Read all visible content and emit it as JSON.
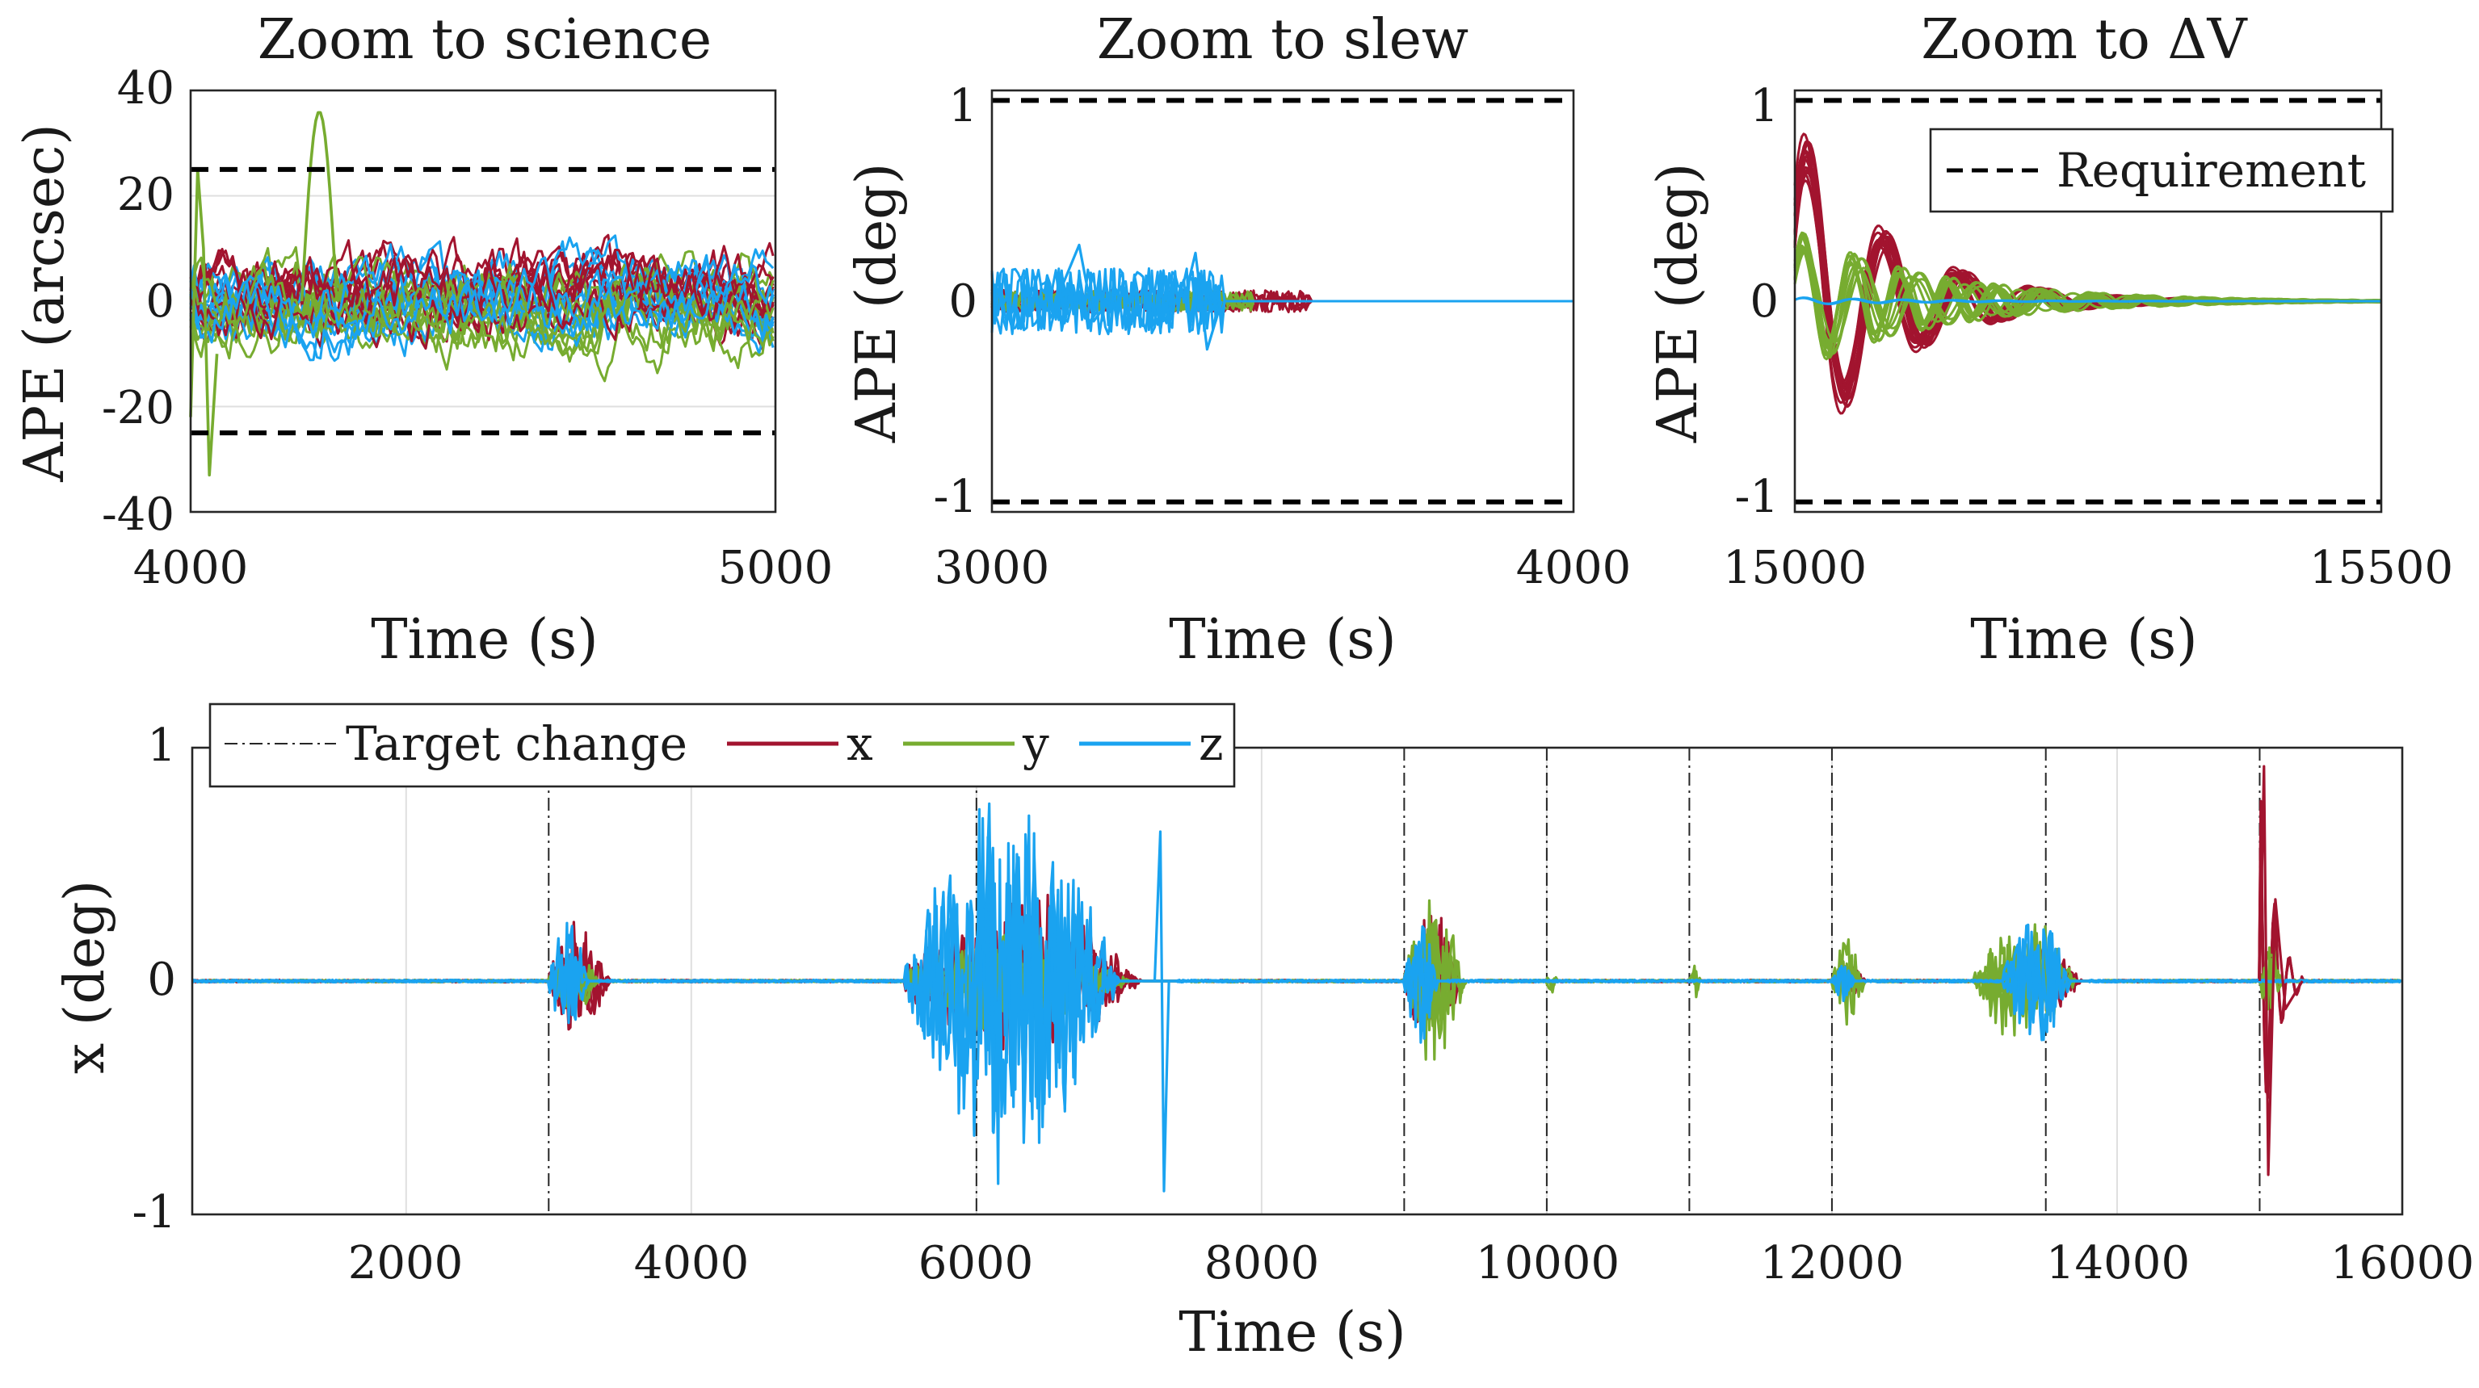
{
  "colors": {
    "x": "#a2142f",
    "y": "#77ac30",
    "z": "#1aa3f0",
    "requirement": "#000000",
    "target_change": "#262626"
  },
  "chart_data": [
    {
      "type": "line",
      "title": "Zoom to science",
      "xlabel": "Time (s)",
      "ylabel": "APE (arcsec)",
      "xlim": [
        4000,
        5000
      ],
      "ylim": [
        -40,
        40
      ],
      "xticks": [
        "4000",
        "5000"
      ],
      "yticks": [
        "40",
        "20",
        "0",
        "-20",
        "-40"
      ],
      "requirement": [
        25,
        -25
      ],
      "series": [
        {
          "name": "x",
          "band": [
            -12,
            15
          ]
        },
        {
          "name": "y",
          "band": [
            -15,
            12
          ],
          "spikes": [
            [
              4220,
              36
            ],
            [
              4020,
              25
            ],
            [
              4030,
              -33
            ]
          ]
        },
        {
          "name": "z",
          "band": [
            -14,
            14
          ]
        }
      ]
    },
    {
      "type": "line",
      "title": "Zoom to slew",
      "xlabel": "Time (s)",
      "ylabel": "APE (deg)",
      "xlim": [
        3000,
        4000
      ],
      "ylim": [
        -1.05,
        1.05
      ],
      "xticks": [
        "3000",
        "4000"
      ],
      "yticks": [
        "1",
        "0",
        "-1"
      ],
      "requirement": [
        1,
        -1
      ],
      "series": [
        {
          "name": "x",
          "peak": 0.1,
          "end": 3550
        },
        {
          "name": "y",
          "peak": 0.09,
          "end": 3450
        },
        {
          "name": "z",
          "peak": 0.3,
          "end": 3400
        }
      ]
    },
    {
      "type": "line",
      "title": "Zoom to ΔV",
      "xlabel": "Time (s)",
      "ylabel": "APE (deg)",
      "xlim": [
        15000,
        15500
      ],
      "ylim": [
        -1.05,
        1.05
      ],
      "xticks": [
        "15000",
        "15500"
      ],
      "yticks": [
        "1",
        "0",
        "-1"
      ],
      "requirement": [
        1,
        -1
      ],
      "legend": [
        "Requirement"
      ],
      "series": [
        {
          "name": "x",
          "peak": 0.9,
          "decay": 80
        },
        {
          "name": "y",
          "peak": 0.35,
          "decay": 120
        },
        {
          "name": "z",
          "peak": 0.02,
          "decay": 100
        }
      ]
    },
    {
      "type": "line",
      "title": "",
      "xlabel": "Time (s)",
      "ylabel": "x (deg)",
      "xlim": [
        500,
        16000
      ],
      "ylim": [
        -1,
        1
      ],
      "xticks": [
        "2000",
        "4000",
        "6000",
        "8000",
        "10000",
        "12000",
        "14000",
        "16000"
      ],
      "yticks": [
        "1",
        "0",
        "-1"
      ],
      "target_changes": [
        3000,
        6000,
        9000,
        10000,
        11000,
        12000,
        13500,
        15000,
        16000
      ],
      "legend": [
        "Target change",
        "x",
        "y",
        "z"
      ],
      "series": [
        {
          "name": "x",
          "peaks": [
            [
              3000,
              3550,
              0.27
            ],
            [
              5500,
              7600,
              0.4
            ],
            [
              9000,
              9500,
              0.35
            ],
            [
              12000,
              12300,
              0.1
            ],
            [
              13200,
              13900,
              0.2
            ],
            [
              15000,
              15300,
              0.92
            ]
          ]
        },
        {
          "name": "y",
          "peaks": [
            [
              3000,
              3450,
              0.15
            ],
            [
              5500,
              7500,
              0.25
            ],
            [
              9000,
              9550,
              0.42
            ],
            [
              10000,
              10100,
              0.1
            ],
            [
              11000,
              11100,
              0.1
            ],
            [
              12000,
              12300,
              0.2
            ],
            [
              13000,
              13900,
              0.3
            ],
            [
              15000,
              15200,
              0.2
            ]
          ]
        },
        {
          "name": "z",
          "peaks": [
            [
              3000,
              3350,
              0.31
            ],
            [
              5500,
              7400,
              0.9
            ],
            [
              9000,
              9300,
              0.3
            ],
            [
              12000,
              12200,
              0.12
            ],
            [
              13200,
              13800,
              0.35
            ]
          ]
        }
      ]
    }
  ]
}
